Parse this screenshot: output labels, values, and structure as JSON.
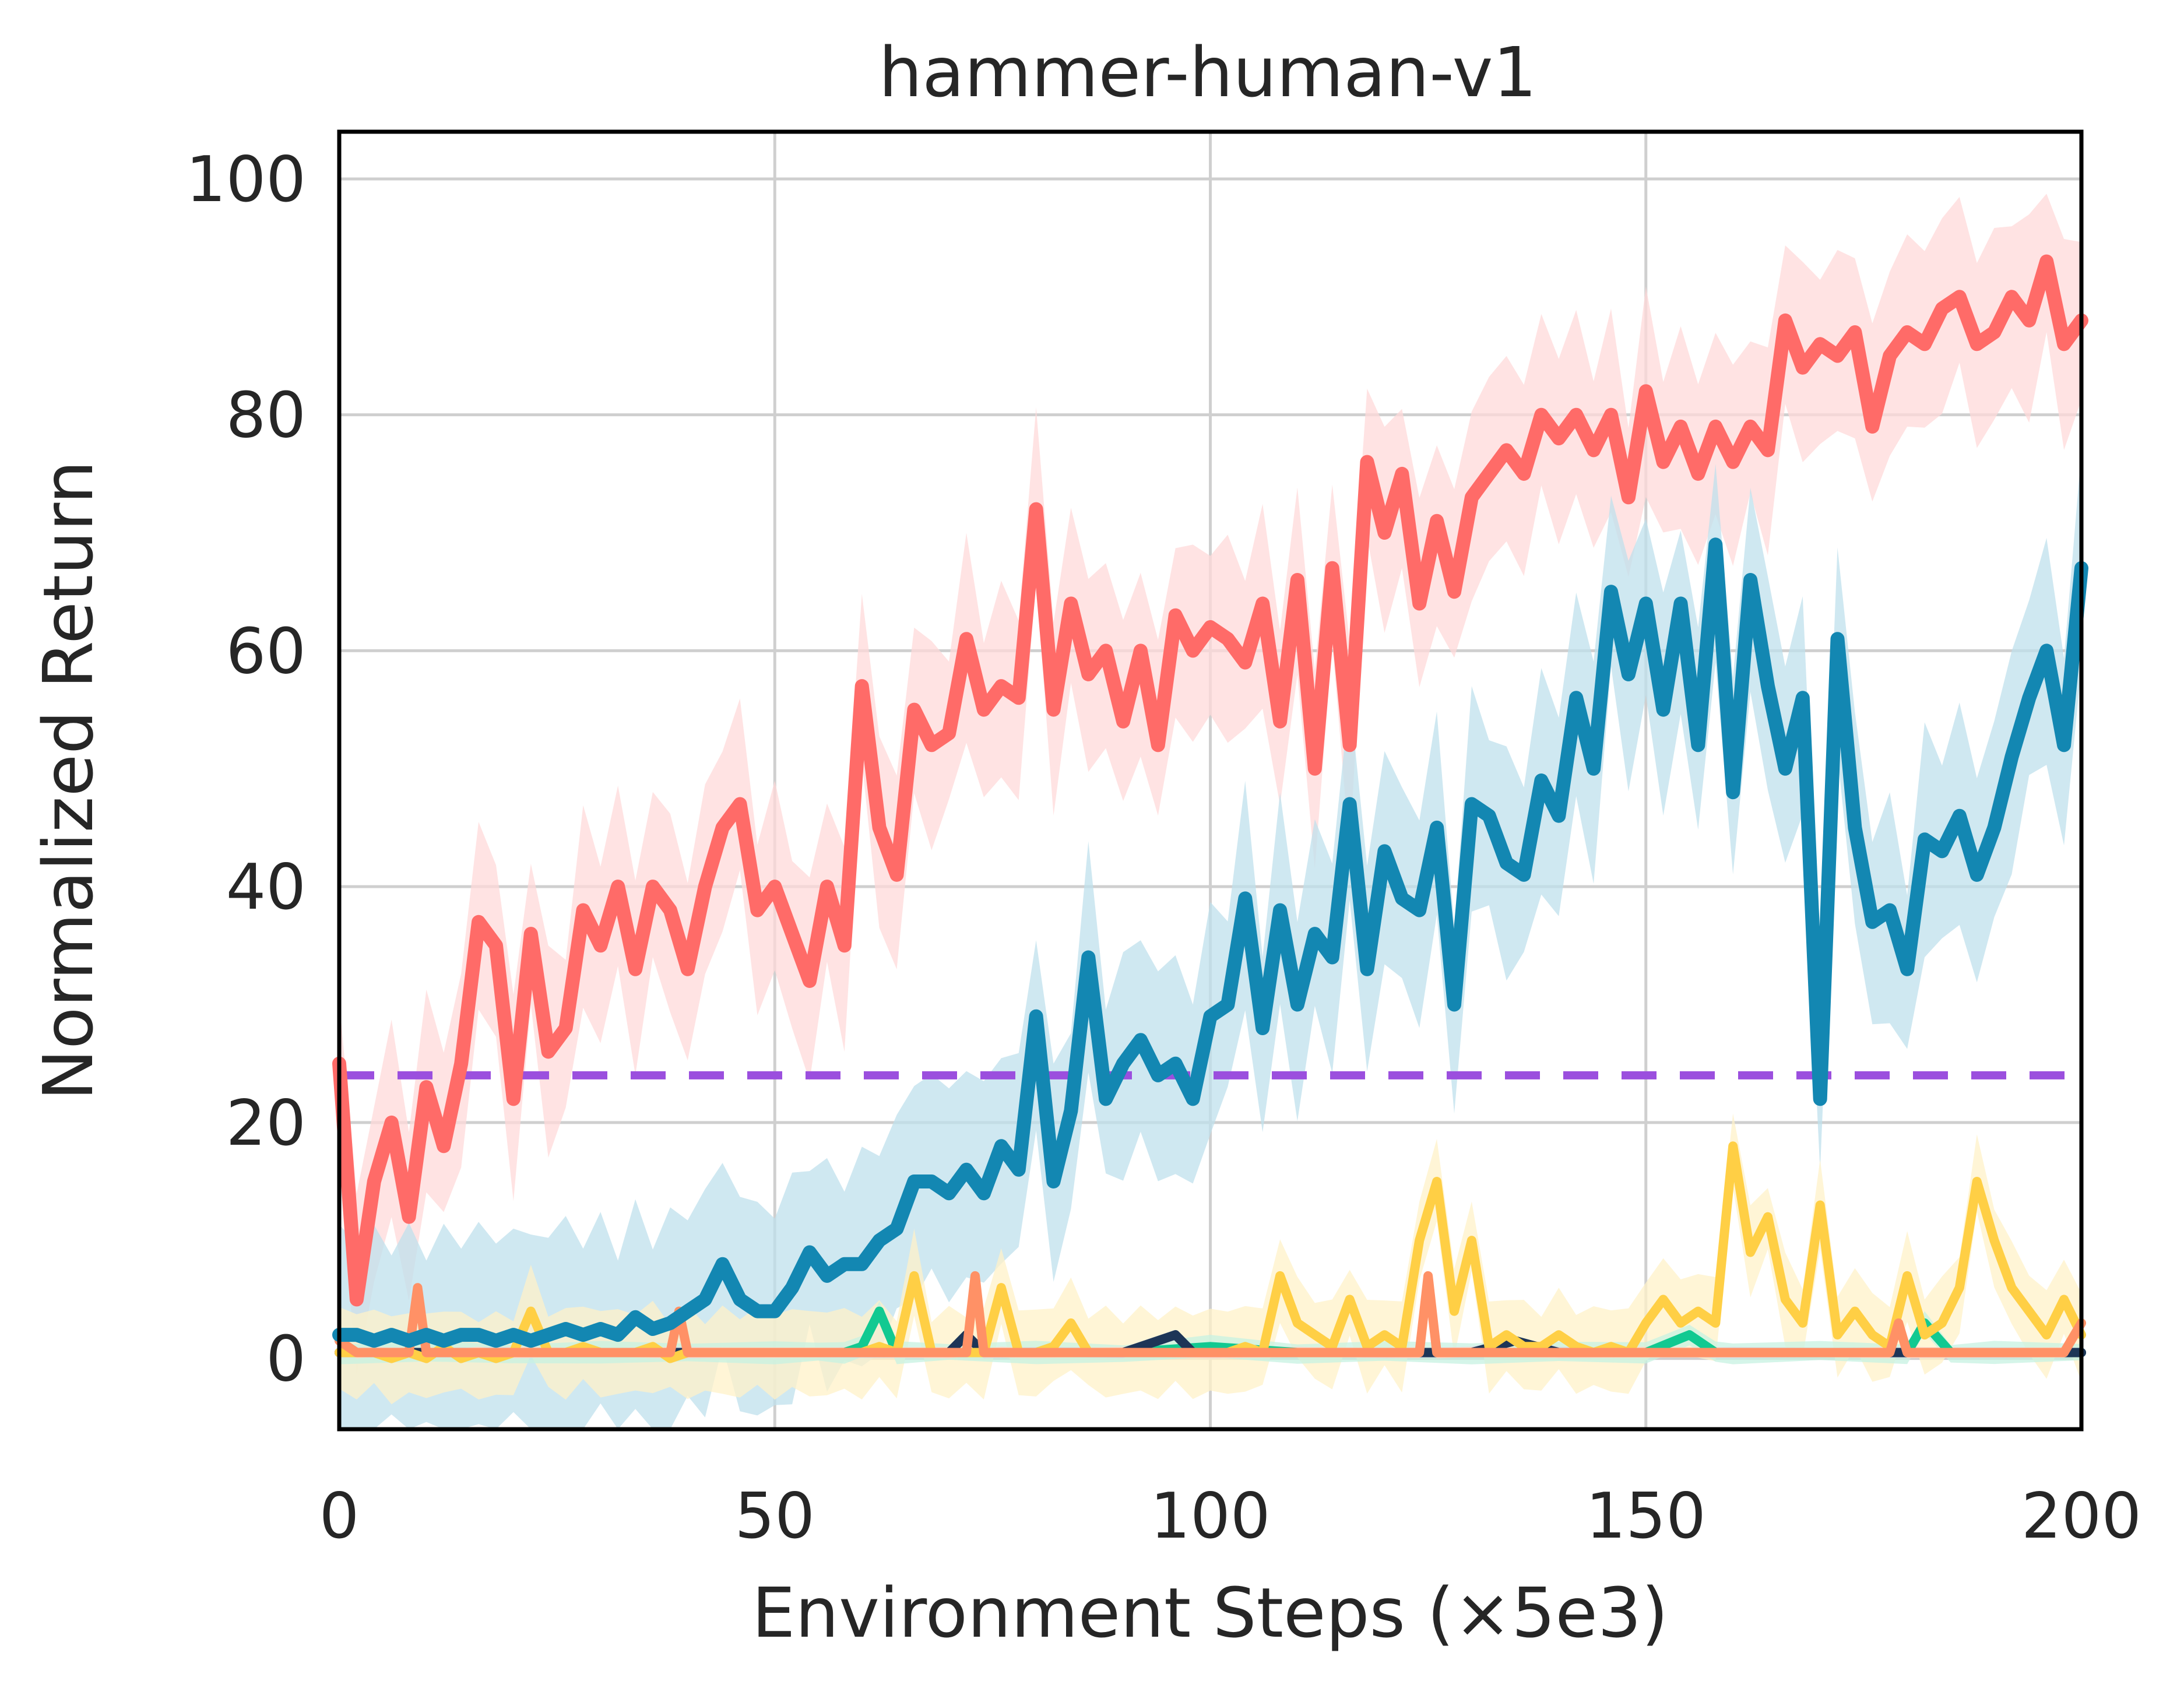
{
  "chart_data": {
    "type": "line",
    "title": "hammer-human-v1",
    "xlabel": "Environment Steps (×5e3)",
    "ylabel": "Normalized Return",
    "xlim": [
      0,
      200
    ],
    "ylim": [
      -6,
      104
    ],
    "xticks": [
      0,
      50,
      100,
      150,
      200
    ],
    "yticks": [
      0,
      20,
      40,
      60,
      80,
      100
    ],
    "grid": true,
    "legend": "none",
    "reference_line": {
      "value": 24,
      "color": "#9b4fde",
      "style": "dashed"
    },
    "series": [
      {
        "color": "#ff6b68",
        "band_color": "#ffd9da",
        "x": [
          0,
          2,
          4,
          6,
          8,
          10,
          12,
          14,
          16,
          18,
          20,
          22,
          24,
          26,
          28,
          30,
          32,
          34,
          36,
          38,
          40,
          42,
          44,
          46,
          48,
          50,
          52,
          54,
          56,
          58,
          60,
          62,
          64,
          66,
          68,
          70,
          72,
          74,
          76,
          78,
          80,
          82,
          84,
          86,
          88,
          90,
          92,
          94,
          96,
          98,
          100,
          102,
          104,
          106,
          108,
          110,
          112,
          114,
          116,
          118,
          120,
          122,
          124,
          126,
          128,
          130,
          132,
          134,
          136,
          138,
          140,
          142,
          144,
          146,
          148,
          150,
          152,
          154,
          156,
          158,
          160,
          162,
          164,
          166,
          168,
          170,
          172,
          174,
          176,
          178,
          180,
          182,
          184,
          186,
          188,
          190,
          192,
          194,
          196,
          198,
          200
        ],
        "values": [
          25,
          5,
          15,
          20,
          12,
          23,
          18,
          25,
          37,
          35,
          22,
          36,
          26,
          28,
          38,
          35,
          40,
          33,
          40,
          38,
          33,
          40,
          45,
          47,
          38,
          40,
          36,
          32,
          40,
          35,
          57,
          45,
          41,
          55,
          52,
          53,
          61,
          55,
          57,
          56,
          72,
          55,
          64,
          58,
          60,
          54,
          60,
          52,
          63,
          60,
          62,
          61,
          59,
          64,
          54,
          66,
          50,
          67,
          52,
          76,
          70,
          75,
          64,
          71,
          65,
          73,
          75,
          77,
          75,
          80,
          78,
          80,
          77,
          80,
          73,
          82,
          76,
          79,
          75,
          79,
          76,
          79,
          77,
          88,
          84,
          86,
          85,
          87,
          79,
          85,
          87,
          86,
          89,
          90,
          86,
          87,
          90,
          88,
          93,
          86,
          88
        ],
        "spread": 9
      },
      {
        "color": "#1387b2",
        "band_color": "#bfe0ec",
        "x": [
          0,
          2,
          4,
          6,
          8,
          10,
          12,
          14,
          16,
          18,
          20,
          22,
          24,
          26,
          28,
          30,
          32,
          34,
          36,
          38,
          40,
          42,
          44,
          46,
          48,
          50,
          52,
          54,
          56,
          58,
          60,
          62,
          64,
          66,
          68,
          70,
          72,
          74,
          76,
          78,
          80,
          82,
          84,
          86,
          88,
          90,
          92,
          94,
          96,
          98,
          100,
          102,
          104,
          106,
          108,
          110,
          112,
          114,
          116,
          118,
          120,
          122,
          124,
          126,
          128,
          130,
          132,
          134,
          136,
          138,
          140,
          142,
          144,
          146,
          148,
          150,
          152,
          154,
          156,
          158,
          160,
          162,
          164,
          166,
          168,
          170,
          172,
          174,
          176,
          178,
          180,
          182,
          184,
          186,
          188,
          190,
          192,
          194,
          196,
          198,
          200
        ],
        "values": [
          2,
          2,
          1.5,
          2,
          1.5,
          2,
          1.5,
          2,
          2,
          1.5,
          2,
          1.5,
          2,
          2.5,
          2,
          2.5,
          2,
          3.5,
          2.5,
          3,
          4,
          5,
          8,
          5,
          4,
          4,
          6,
          9,
          7,
          8,
          8,
          10,
          11,
          15,
          15,
          14,
          16,
          14,
          18,
          16,
          29,
          15,
          21,
          34,
          22,
          25,
          27,
          24,
          25,
          22,
          29,
          30,
          39,
          28,
          38,
          30,
          36,
          34,
          47,
          33,
          43,
          39,
          38,
          45,
          30,
          47,
          46,
          42,
          41,
          49,
          46,
          56,
          50,
          65,
          58,
          64,
          55,
          64,
          52,
          69,
          48,
          66,
          57,
          50,
          56,
          22,
          61,
          45,
          37,
          38,
          33,
          44,
          43,
          46,
          41,
          45,
          51,
          56,
          60,
          52,
          67
        ],
        "spread": 10
      },
      {
        "color": "#ffcf45",
        "band_color": "#fff2c8",
        "x": [
          0,
          2,
          4,
          6,
          8,
          10,
          12,
          14,
          16,
          18,
          20,
          22,
          24,
          26,
          28,
          30,
          32,
          34,
          36,
          38,
          40,
          42,
          44,
          46,
          48,
          50,
          52,
          54,
          56,
          58,
          60,
          62,
          64,
          66,
          68,
          70,
          72,
          74,
          76,
          78,
          80,
          82,
          84,
          86,
          88,
          90,
          92,
          94,
          96,
          98,
          100,
          102,
          104,
          106,
          108,
          110,
          112,
          114,
          116,
          118,
          120,
          122,
          124,
          126,
          128,
          130,
          132,
          134,
          136,
          138,
          140,
          142,
          144,
          146,
          148,
          150,
          152,
          154,
          156,
          158,
          160,
          162,
          164,
          166,
          168,
          170,
          172,
          174,
          176,
          178,
          180,
          182,
          184,
          186,
          188,
          190,
          192,
          194,
          196,
          198,
          200
        ],
        "values": [
          0.5,
          0.5,
          0.5,
          0,
          0.5,
          0,
          1,
          0,
          0.5,
          0,
          0.5,
          4,
          0.5,
          0.5,
          1,
          0.5,
          0.5,
          0.5,
          1,
          0,
          0.5,
          0.5,
          0.5,
          0.5,
          0.5,
          0.5,
          0.5,
          0.5,
          0.5,
          0.5,
          0.5,
          1,
          0.5,
          7,
          0.5,
          0.5,
          0.5,
          0.5,
          6,
          0.5,
          0.5,
          1,
          3,
          0.5,
          0.5,
          0.5,
          0.5,
          0.5,
          0.5,
          0.5,
          0.5,
          0.5,
          1,
          0.5,
          7,
          3,
          2,
          1,
          5,
          1,
          2,
          1,
          10,
          15,
          4,
          10,
          1,
          2,
          1,
          1,
          2,
          1,
          0.5,
          1,
          0.5,
          3,
          5,
          3,
          4,
          3,
          18,
          9,
          12,
          5,
          3,
          13,
          2,
          4,
          2,
          1,
          7,
          2,
          3,
          6,
          15,
          10,
          6,
          4,
          2,
          5,
          2
        ],
        "spread": 4
      },
      {
        "color": "#12c991",
        "band_color": "#c7f1e2",
        "x": [
          0,
          10,
          20,
          30,
          40,
          50,
          55,
          58,
          60,
          62,
          64,
          70,
          80,
          90,
          100,
          110,
          120,
          130,
          140,
          150,
          155,
          158,
          160,
          170,
          180,
          182,
          185,
          190,
          200
        ],
        "values": [
          0.5,
          0.5,
          0.5,
          0.5,
          0.5,
          0.5,
          0.5,
          0.5,
          1,
          4,
          0.5,
          0.5,
          0.5,
          0.5,
          1,
          0.5,
          0.5,
          0.5,
          0.5,
          0.5,
          2,
          0.5,
          0.5,
          0.5,
          0.5,
          3,
          0.5,
          0.5,
          0.5
        ],
        "spread": 1
      },
      {
        "color": "#1d3557",
        "band_color": "#d5dbe5",
        "x": [
          0,
          10,
          20,
          30,
          40,
          50,
          60,
          70,
          72,
          74,
          80,
          90,
          96,
          98,
          100,
          110,
          120,
          130,
          135,
          140,
          150,
          160,
          170,
          180,
          190,
          200
        ],
        "values": [
          0.5,
          0.5,
          0.5,
          0.5,
          0.5,
          0.5,
          0.5,
          0.5,
          2,
          0.5,
          0.5,
          0.5,
          2,
          0.5,
          0.5,
          0.5,
          0.5,
          0.5,
          1.5,
          0.5,
          0.5,
          0.5,
          0.5,
          0.5,
          0.5,
          0.5
        ],
        "spread": 0.5
      },
      {
        "color": "#ff9166",
        "band_color": "#ffd9c8",
        "x": [
          0,
          2,
          4,
          6,
          8,
          9,
          10,
          12,
          14,
          16,
          18,
          20,
          30,
          38,
          39,
          40,
          50,
          60,
          70,
          72,
          73,
          74,
          76,
          80,
          90,
          100,
          110,
          120,
          124,
          125,
          126,
          130,
          140,
          150,
          170,
          178,
          179,
          180,
          190,
          198,
          200
        ],
        "values": [
          1.5,
          0.5,
          0.5,
          0.5,
          0.5,
          6,
          0.5,
          0.5,
          0.5,
          0.5,
          0.5,
          0.5,
          0.5,
          0.5,
          4,
          0.5,
          0.5,
          0.5,
          0.5,
          0.5,
          7,
          0.5,
          0.5,
          0.5,
          0.5,
          0.5,
          0.5,
          0.5,
          0.5,
          7,
          0.5,
          0.5,
          0.5,
          0.5,
          0.5,
          0.5,
          3,
          0.5,
          0.5,
          0.5,
          3
        ],
        "spread": 0.5
      }
    ]
  }
}
